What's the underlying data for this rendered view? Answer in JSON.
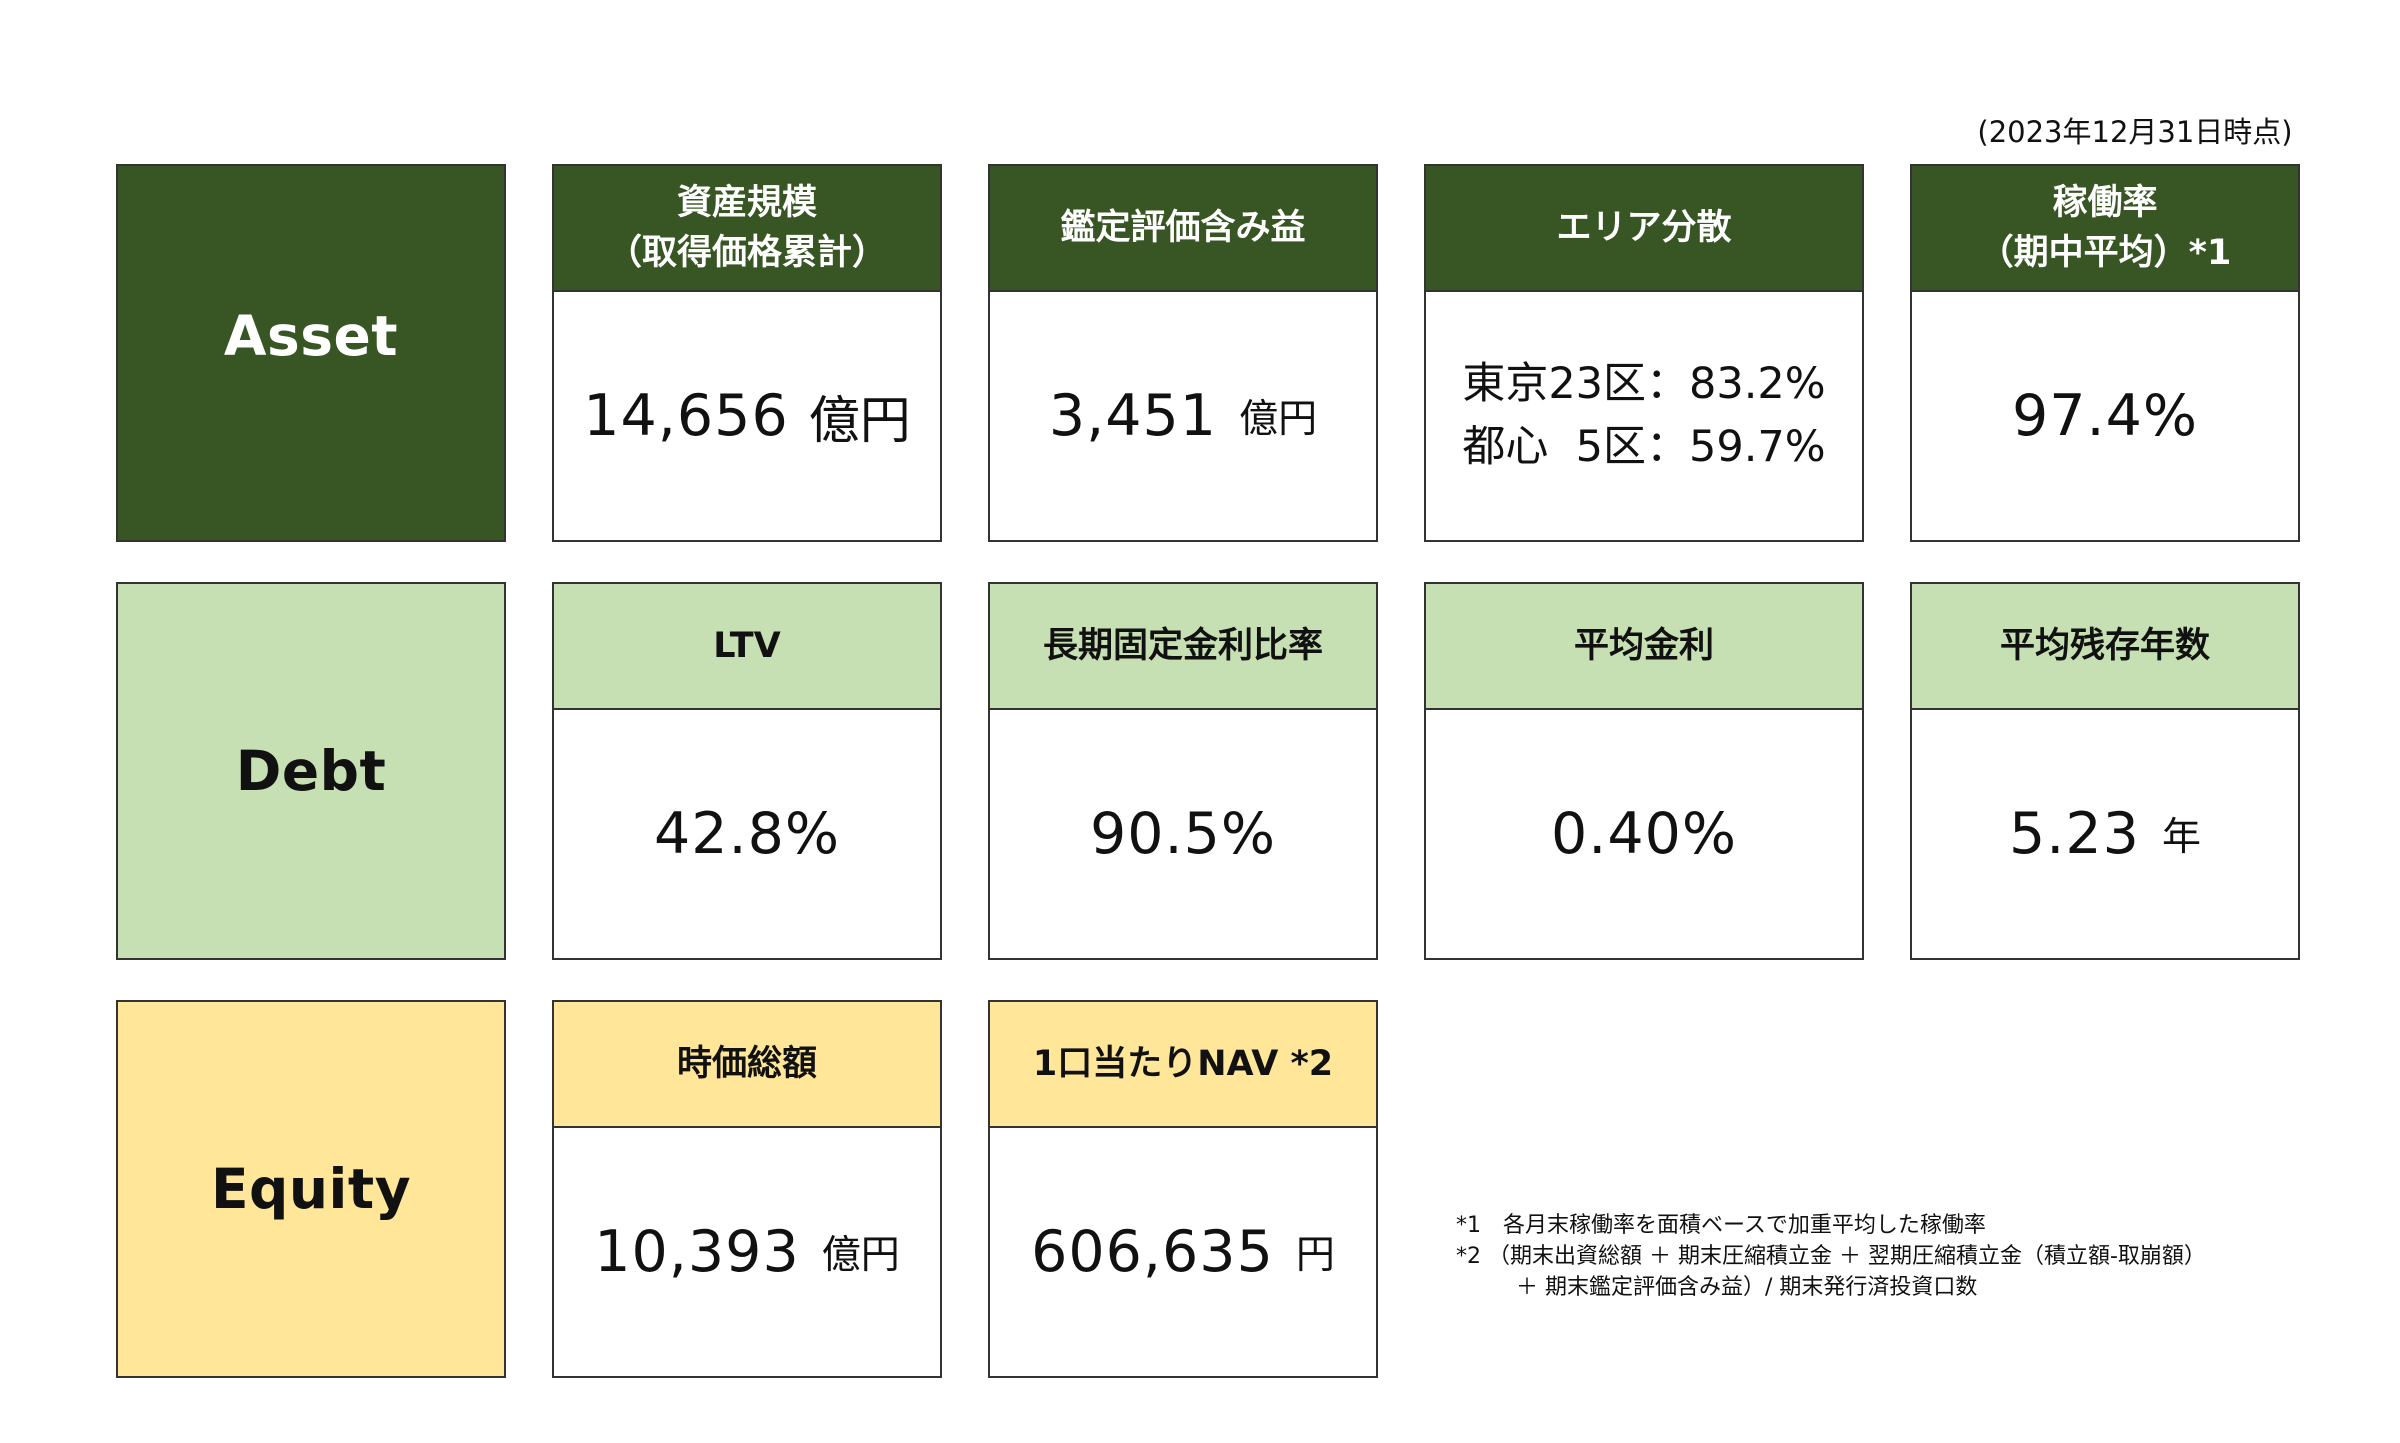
{
  "as_of": "(2023年12月31日時点)",
  "colors": {
    "asset": "#375623",
    "debt": "#c6e0b4",
    "equity": "#ffe699",
    "border": "#333333"
  },
  "asset": {
    "label": "Asset",
    "cards": {
      "size": {
        "title_line1": "資産規模",
        "title_line2": "（取得価格累計）",
        "value": "14,656",
        "unit": "億円"
      },
      "unrealized": {
        "title": "鑑定評価含み益",
        "value": "3,451",
        "unit": "億円"
      },
      "area": {
        "title": "エリア分散",
        "line1": "東京23区：83.2%",
        "line2": "都心  5区：59.7%"
      },
      "occupancy": {
        "title_line1": "稼働率",
        "title_line2": "（期中平均）*1",
        "value": "97.4%"
      }
    }
  },
  "debt": {
    "label": "Debt",
    "cards": {
      "ltv": {
        "title": "LTV",
        "value": "42.8%"
      },
      "fixed_ratio": {
        "title": "長期固定金利比率",
        "value": "90.5%"
      },
      "avg_rate": {
        "title": "平均金利",
        "value": "0.40%"
      },
      "avg_term": {
        "title": "平均残存年数",
        "value": "5.23",
        "unit": "年"
      }
    }
  },
  "equity": {
    "label": "Equity",
    "cards": {
      "market_cap": {
        "title": "時価総額",
        "value": "10,393",
        "unit": "億円"
      },
      "nav": {
        "title": "1口当たりNAV *2",
        "value": "606,635",
        "unit": "円"
      }
    }
  },
  "footnotes": {
    "note1": "*1　各月末稼働率を面積ベースで加重平均した稼働率",
    "note2_line1": "*2 （期末出資総額 ＋ 期末圧縮積立金 ＋ 翌期圧縮積立金（積立額-取崩額）",
    "note2_line2": "＋ 期末鑑定評価含み益）/ 期末発行済投資口数"
  }
}
